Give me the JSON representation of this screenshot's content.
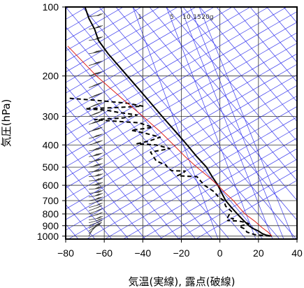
{
  "chart_data": {
    "type": "line",
    "title": "",
    "xlabel": "気温(実線), 露点(破線)",
    "ylabel": "気圧(hPa)",
    "xlim": [
      -80,
      40
    ],
    "ylim": [
      1030,
      100
    ],
    "y_scale": "log",
    "x_ticks": [
      -80,
      -60,
      -40,
      -20,
      0,
      20,
      40
    ],
    "y_ticks": [
      100,
      200,
      300,
      400,
      500,
      600,
      700,
      800,
      900,
      1000
    ],
    "grid": true,
    "mixing_ratio_labels": [
      "1",
      "5",
      "10",
      "15",
      "20g"
    ],
    "colors": {
      "temperature": "#000000",
      "dew_point": "#000000",
      "reference_line": "#e0201a",
      "background_lines": "#3a3aee",
      "wind_barbs": "#333333",
      "grid": "#333333"
    },
    "series": [
      {
        "id": "temperature",
        "style": "solid",
        "points": [
          [
            27,
            1000
          ],
          [
            24,
            990
          ],
          [
            22,
            975
          ],
          [
            20,
            950
          ],
          [
            17,
            925
          ],
          [
            15,
            900
          ],
          [
            12,
            850
          ],
          [
            9,
            800
          ],
          [
            6,
            750
          ],
          [
            3,
            700
          ],
          [
            1,
            650
          ],
          [
            -1,
            600
          ],
          [
            -4,
            550
          ],
          [
            -7,
            500
          ],
          [
            -12,
            450
          ],
          [
            -17,
            400
          ],
          [
            -23,
            350
          ],
          [
            -30,
            300
          ],
          [
            -38,
            250
          ],
          [
            -48,
            200
          ],
          [
            -58,
            160
          ],
          [
            -63,
            140
          ],
          [
            -65,
            125
          ],
          [
            -68,
            112
          ],
          [
            -70,
            100
          ]
        ]
      },
      {
        "id": "dew_point",
        "style": "dashed",
        "points": [
          [
            26,
            1000
          ],
          [
            18,
            985
          ],
          [
            14,
            960
          ],
          [
            13,
            930
          ],
          [
            11,
            915
          ],
          [
            10,
            905
          ],
          [
            15,
            885
          ],
          [
            14,
            875
          ],
          [
            10,
            860
          ],
          [
            4,
            855
          ],
          [
            7,
            840
          ],
          [
            4,
            830
          ],
          [
            5,
            800
          ],
          [
            6,
            780
          ],
          [
            3,
            740
          ],
          [
            2,
            700
          ],
          [
            1,
            690
          ],
          [
            0,
            680
          ],
          [
            -1,
            670
          ],
          [
            -3,
            640
          ],
          [
            -8,
            600
          ],
          [
            -10,
            575
          ],
          [
            -11,
            560
          ],
          [
            -12,
            550
          ],
          [
            -16,
            548
          ],
          [
            -22,
            545
          ],
          [
            -19,
            530
          ],
          [
            -18,
            520
          ],
          [
            -25,
            518
          ],
          [
            -27,
            505
          ],
          [
            -28,
            490
          ],
          [
            -33,
            470
          ],
          [
            -36,
            430
          ],
          [
            -26,
            415
          ],
          [
            -33,
            400
          ],
          [
            -43,
            395
          ],
          [
            -37,
            385
          ],
          [
            -31,
            370
          ],
          [
            -39,
            355
          ],
          [
            -46,
            345
          ],
          [
            -40,
            340
          ],
          [
            -35,
            335
          ],
          [
            -42,
            320
          ],
          [
            -55,
            315
          ],
          [
            -65,
            310
          ],
          [
            -50,
            305
          ],
          [
            -43,
            296
          ],
          [
            -53,
            288
          ],
          [
            -59,
            282
          ],
          [
            -70,
            278
          ],
          [
            -55,
            275
          ],
          [
            -40,
            271
          ],
          [
            -48,
            263
          ],
          [
            -65,
            255
          ],
          [
            -79,
            250
          ]
        ]
      },
      {
        "id": "reference",
        "style": "solid-red",
        "points": [
          [
            27,
            1000
          ],
          [
            25,
            960
          ],
          [
            22,
            920
          ],
          [
            18,
            860
          ],
          [
            13,
            800
          ],
          [
            10,
            750
          ],
          [
            7,
            700
          ],
          [
            3,
            650
          ],
          [
            -1,
            600
          ],
          [
            -6,
            550
          ],
          [
            -12,
            500
          ],
          [
            -18,
            450
          ],
          [
            -24,
            400
          ],
          [
            -31,
            350
          ],
          [
            -40,
            300
          ],
          [
            -51,
            250
          ],
          [
            -64,
            200
          ],
          [
            -79,
            148
          ]
        ]
      }
    ],
    "wind_barbs": [
      {
        "p": 1000,
        "dir": 210,
        "speed": 5
      },
      {
        "p": 975,
        "dir": 225,
        "speed": 10
      },
      {
        "p": 950,
        "dir": 235,
        "speed": 10
      },
      {
        "p": 925,
        "dir": 245,
        "speed": 15
      },
      {
        "p": 900,
        "dir": 250,
        "speed": 15
      },
      {
        "p": 875,
        "dir": 255,
        "speed": 15
      },
      {
        "p": 850,
        "dir": 260,
        "speed": 20
      },
      {
        "p": 825,
        "dir": 255,
        "speed": 20
      },
      {
        "p": 800,
        "dir": 250,
        "speed": 20
      },
      {
        "p": 775,
        "dir": 250,
        "speed": 20
      },
      {
        "p": 750,
        "dir": 255,
        "speed": 20
      },
      {
        "p": 725,
        "dir": 255,
        "speed": 20
      },
      {
        "p": 700,
        "dir": 260,
        "speed": 25
      },
      {
        "p": 675,
        "dir": 260,
        "speed": 25
      },
      {
        "p": 650,
        "dir": 265,
        "speed": 25
      },
      {
        "p": 625,
        "dir": 265,
        "speed": 30
      },
      {
        "p": 600,
        "dir": 265,
        "speed": 30
      },
      {
        "p": 575,
        "dir": 265,
        "speed": 30
      },
      {
        "p": 550,
        "dir": 265,
        "speed": 30
      },
      {
        "p": 525,
        "dir": 265,
        "speed": 35
      },
      {
        "p": 500,
        "dir": 260,
        "speed": 35
      },
      {
        "p": 475,
        "dir": 260,
        "speed": 35
      },
      {
        "p": 450,
        "dir": 260,
        "speed": 40
      },
      {
        "p": 425,
        "dir": 260,
        "speed": 40
      },
      {
        "p": 400,
        "dir": 255,
        "speed": 40
      },
      {
        "p": 375,
        "dir": 255,
        "speed": 40
      },
      {
        "p": 350,
        "dir": 255,
        "speed": 45
      },
      {
        "p": 325,
        "dir": 255,
        "speed": 45
      },
      {
        "p": 300,
        "dir": 250,
        "speed": 50
      },
      {
        "p": 275,
        "dir": 250,
        "speed": 50
      },
      {
        "p": 250,
        "dir": 250,
        "speed": 50
      },
      {
        "p": 225,
        "dir": 250,
        "speed": 45
      },
      {
        "p": 200,
        "dir": 255,
        "speed": 45
      },
      {
        "p": 180,
        "dir": 255,
        "speed": 40
      },
      {
        "p": 160,
        "dir": 260,
        "speed": 35
      },
      {
        "p": 140,
        "dir": 260,
        "speed": 30
      },
      {
        "p": 125,
        "dir": 260,
        "speed": 25
      },
      {
        "p": 110,
        "dir": 265,
        "speed": 20
      },
      {
        "p": 100,
        "dir": 265,
        "speed": 15
      }
    ]
  }
}
